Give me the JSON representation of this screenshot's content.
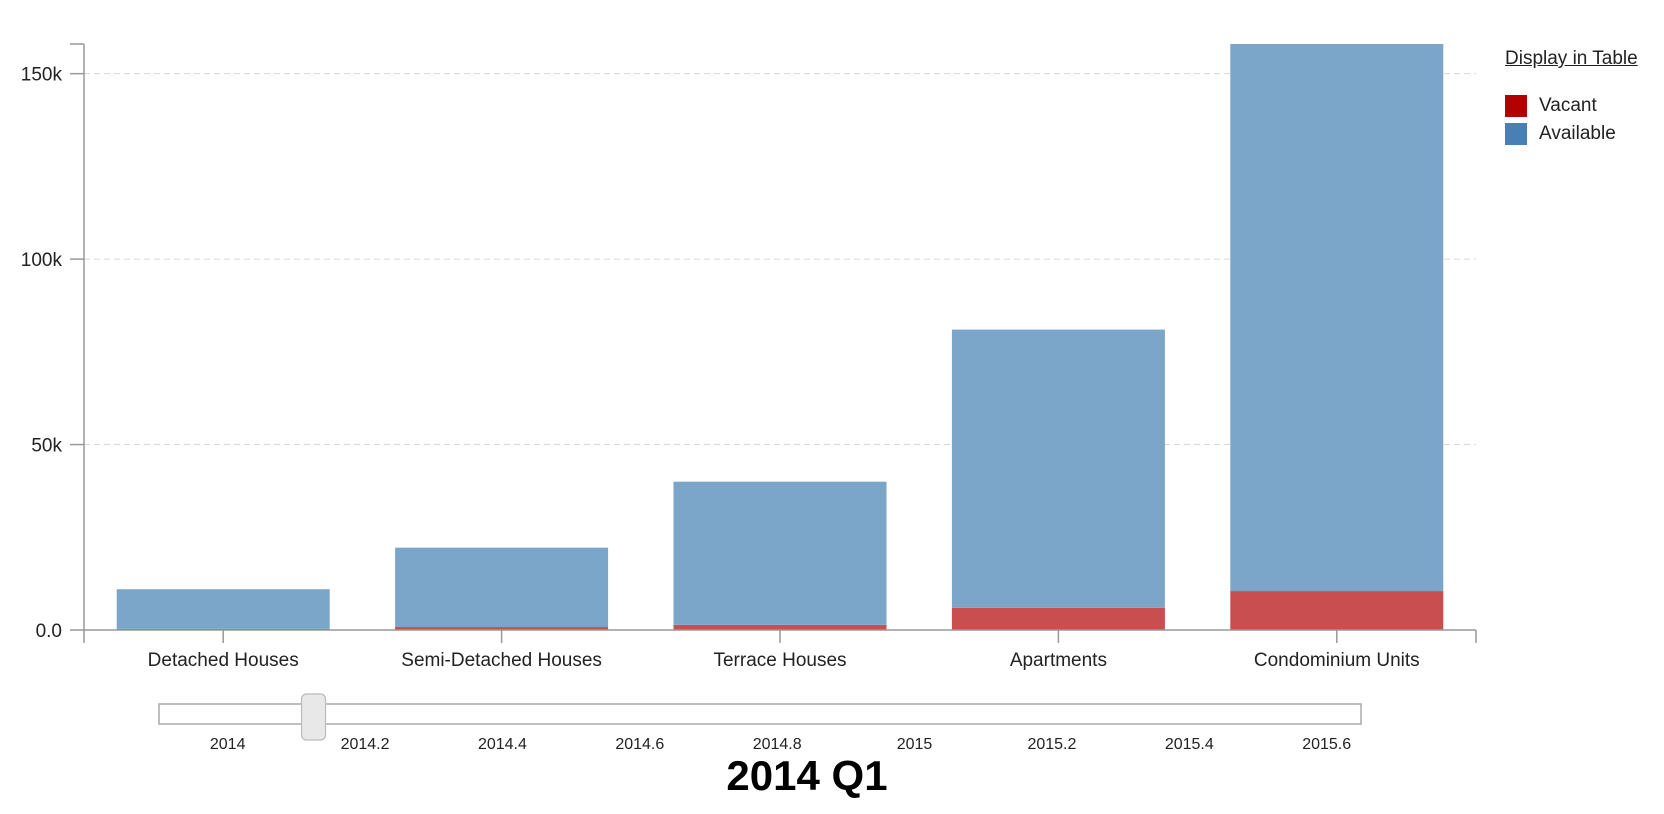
{
  "chart_data": {
    "type": "bar",
    "stacked": true,
    "categories": [
      "Detached Houses",
      "Semi-Detached Houses",
      "Terrace Houses",
      "Apartments",
      "Condominium Units"
    ],
    "series": [
      {
        "name": "Vacant",
        "color": "#c94e50",
        "values": [
          300,
          800,
          1400,
          6000,
          10500
        ]
      },
      {
        "name": "Available",
        "color": "#7ba6c9",
        "values": [
          10700,
          21400,
          38600,
          75000,
          147500
        ]
      }
    ],
    "yticks": [
      "0.0",
      "50k",
      "100k",
      "150k"
    ],
    "ytick_values": [
      0,
      50000,
      100000,
      150000
    ],
    "ylim": [
      0,
      158000
    ],
    "grid": true,
    "legend_position": "top-right"
  },
  "legend": {
    "display_table_link": "Display in Table",
    "items": [
      {
        "label": "Vacant",
        "color": "#b30000"
      },
      {
        "label": "Available",
        "color": "#4a7fb5"
      }
    ]
  },
  "slider": {
    "min": 2013.9,
    "max": 2015.65,
    "value": 2014.125,
    "ticks": [
      "2014",
      "2014.2",
      "2014.4",
      "2014.6",
      "2014.8",
      "2015",
      "2015.2",
      "2015.4",
      "2015.6"
    ],
    "tick_values": [
      2014,
      2014.2,
      2014.4,
      2014.6,
      2014.8,
      2015,
      2015.2,
      2015.4,
      2015.6
    ]
  },
  "period_label": "2014 Q1"
}
